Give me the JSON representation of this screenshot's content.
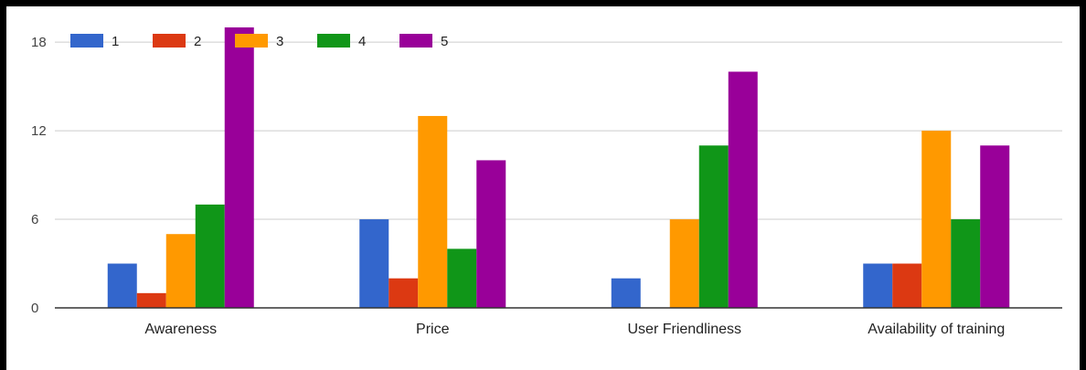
{
  "chart_data": {
    "type": "bar",
    "categories": [
      "Awareness",
      "Price",
      "User Friendliness",
      "Availability of training"
    ],
    "series": [
      {
        "name": "1",
        "color": "#3366cc",
        "values": [
          3,
          6,
          2,
          3
        ]
      },
      {
        "name": "2",
        "color": "#dc3912",
        "values": [
          1,
          2,
          0,
          3
        ]
      },
      {
        "name": "3",
        "color": "#ff9900",
        "values": [
          5,
          13,
          6,
          12
        ]
      },
      {
        "name": "4",
        "color": "#109618",
        "values": [
          7,
          4,
          11,
          6
        ]
      },
      {
        "name": "5",
        "color": "#990099",
        "values": [
          19,
          10,
          16,
          11
        ]
      }
    ],
    "title": "",
    "xlabel": "",
    "ylabel": "",
    "ylim": [
      0,
      19
    ],
    "yticks": [
      0,
      6,
      12,
      18
    ],
    "grid": true,
    "legend_position": "top-left"
  }
}
